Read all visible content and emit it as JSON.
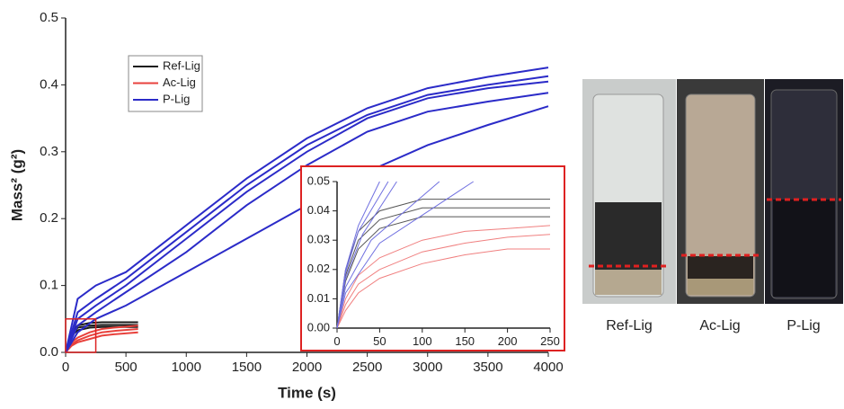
{
  "chart_data": [
    {
      "type": "line",
      "xlabel": "Time (s)",
      "ylabel": "Mass² (g²)",
      "xlim": [
        0,
        4000
      ],
      "xticks": [
        0,
        500,
        1000,
        1500,
        2000,
        2500,
        3000,
        3500,
        4000
      ],
      "ylim": [
        0,
        0.5
      ],
      "yticks": [
        {
          "value": 0,
          "label": "0.0"
        },
        0.1,
        0.2,
        0.3,
        0.4,
        0.5
      ],
      "legend": "upper left",
      "series": [
        {
          "name": "Ref-Lig",
          "color": "#1a1a1a",
          "curves": [
            {
              "x": [
                0,
                50,
                100,
                200,
                300,
                400,
                600
              ],
              "values": [
                0,
                0.03,
                0.04,
                0.044,
                0.045,
                0.045,
                0.045
              ]
            },
            {
              "x": [
                0,
                50,
                100,
                200,
                300,
                400,
                600
              ],
              "values": [
                0,
                0.028,
                0.037,
                0.04,
                0.041,
                0.041,
                0.041
              ]
            },
            {
              "x": [
                0,
                50,
                100,
                200,
                300,
                400,
                600
              ],
              "values": [
                0,
                0.025,
                0.033,
                0.037,
                0.038,
                0.038,
                0.038
              ]
            }
          ]
        },
        {
          "name": "Ac-Lig",
          "color": "#e8413c",
          "curves": [
            {
              "x": [
                0,
                50,
                100,
                200,
                300,
                400,
                600
              ],
              "values": [
                0,
                0.015,
                0.022,
                0.03,
                0.035,
                0.037,
                0.04
              ]
            },
            {
              "x": [
                0,
                50,
                100,
                200,
                300,
                400,
                600
              ],
              "values": [
                0,
                0.012,
                0.018,
                0.025,
                0.03,
                0.032,
                0.035
              ]
            },
            {
              "x": [
                0,
                50,
                100,
                200,
                300,
                400,
                600
              ],
              "values": [
                0,
                0.01,
                0.015,
                0.02,
                0.025,
                0.027,
                0.03
              ]
            }
          ]
        },
        {
          "name": "P-Lig",
          "color": "#2b2bc8",
          "curves": [
            {
              "x": [
                0,
                100,
                250,
                500,
                1000,
                1500,
                2000,
                2500,
                3000,
                3500,
                4000
              ],
              "values": [
                0,
                0.08,
                0.1,
                0.12,
                0.19,
                0.26,
                0.32,
                0.365,
                0.395,
                0.412,
                0.426
              ]
            },
            {
              "x": [
                0,
                100,
                250,
                500,
                1000,
                1500,
                2000,
                2500,
                3000,
                3500,
                4000
              ],
              "values": [
                0,
                0.06,
                0.08,
                0.11,
                0.18,
                0.25,
                0.31,
                0.355,
                0.385,
                0.4,
                0.413
              ]
            },
            {
              "x": [
                0,
                100,
                250,
                500,
                1000,
                1500,
                2000,
                2500,
                3000,
                3500,
                4000
              ],
              "values": [
                0,
                0.05,
                0.07,
                0.1,
                0.17,
                0.24,
                0.3,
                0.35,
                0.38,
                0.395,
                0.405
              ]
            },
            {
              "x": [
                0,
                100,
                250,
                500,
                1000,
                1500,
                2000,
                2500,
                3000,
                3500,
                4000
              ],
              "values": [
                0,
                0.04,
                0.06,
                0.09,
                0.15,
                0.22,
                0.28,
                0.33,
                0.36,
                0.375,
                0.388
              ]
            },
            {
              "x": [
                0,
                100,
                250,
                500,
                1000,
                1500,
                2000,
                2500,
                3000,
                3500,
                4000
              ],
              "values": [
                0,
                0.03,
                0.05,
                0.07,
                0.12,
                0.17,
                0.22,
                0.27,
                0.31,
                0.34,
                0.368
              ]
            }
          ]
        }
      ]
    },
    {
      "type": "line",
      "xlim": [
        0,
        250
      ],
      "xticks": [
        0,
        50,
        100,
        150,
        200,
        250
      ],
      "ylim": [
        0,
        0.05
      ],
      "yticks": [
        {
          "value": 0,
          "label": "0.00"
        },
        0.01,
        0.02,
        0.03,
        0.04,
        0.05
      ],
      "series": [
        {
          "color": "#555555",
          "curves": [
            {
              "x": [
                0,
                10,
                25,
                50,
                100,
                150,
                200,
                250
              ],
              "values": [
                0,
                0.02,
                0.033,
                0.04,
                0.044,
                0.044,
                0.044,
                0.044
              ]
            },
            {
              "x": [
                0,
                10,
                25,
                50,
                100,
                150,
                200,
                250
              ],
              "values": [
                0,
                0.018,
                0.03,
                0.037,
                0.041,
                0.041,
                0.041,
                0.041
              ]
            },
            {
              "x": [
                0,
                10,
                25,
                50,
                100,
                150,
                200,
                250
              ],
              "values": [
                0,
                0.016,
                0.027,
                0.034,
                0.038,
                0.038,
                0.038,
                0.038
              ]
            }
          ]
        },
        {
          "color": "#f08080",
          "curves": [
            {
              "x": [
                0,
                10,
                25,
                50,
                100,
                150,
                200,
                250
              ],
              "values": [
                0,
                0.01,
                0.018,
                0.024,
                0.03,
                0.033,
                0.034,
                0.035
              ]
            },
            {
              "x": [
                0,
                10,
                25,
                50,
                100,
                150,
                200,
                250
              ],
              "values": [
                0,
                0.008,
                0.015,
                0.02,
                0.026,
                0.029,
                0.031,
                0.032
              ]
            },
            {
              "x": [
                0,
                10,
                25,
                50,
                100,
                150,
                200,
                250
              ],
              "values": [
                0,
                0.006,
                0.012,
                0.017,
                0.022,
                0.025,
                0.027,
                0.027
              ]
            }
          ]
        },
        {
          "color": "#7070e0",
          "curves": [
            {
              "x": [
                0,
                10,
                25,
                50
              ],
              "values": [
                0,
                0.02,
                0.035,
                0.05
              ]
            },
            {
              "x": [
                0,
                10,
                25,
                60
              ],
              "values": [
                0,
                0.019,
                0.033,
                0.05
              ]
            },
            {
              "x": [
                0,
                10,
                30,
                70
              ],
              "values": [
                0,
                0.017,
                0.032,
                0.05
              ]
            },
            {
              "x": [
                0,
                10,
                40,
                120
              ],
              "values": [
                0,
                0.014,
                0.03,
                0.05
              ]
            },
            {
              "x": [
                0,
                10,
                50,
                160
              ],
              "values": [
                0,
                0.012,
                0.029,
                0.05
              ]
            }
          ]
        }
      ]
    }
  ],
  "photos": {
    "labels": [
      "Ref-Lig",
      "Ac-Lig",
      "P-Lig"
    ]
  }
}
